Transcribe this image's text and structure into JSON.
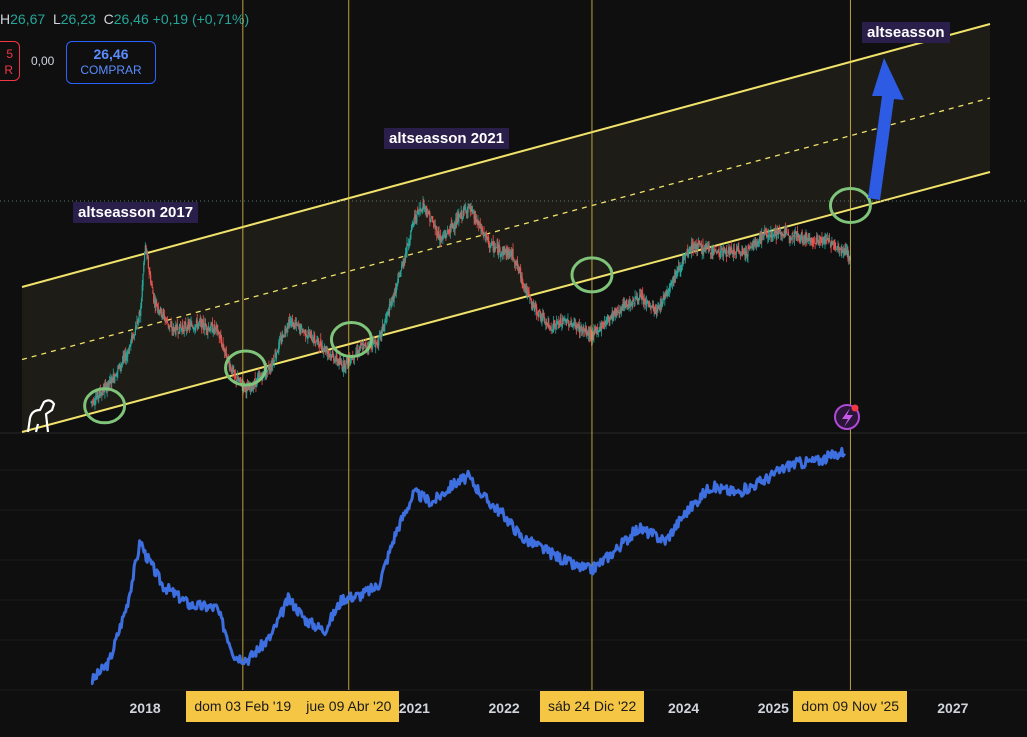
{
  "header": {
    "ohlc": {
      "h_key": "H",
      "h_val": "26,67",
      "l_key": "L",
      "l_val": "26,23",
      "c_key": "C",
      "c_val": "26,46",
      "change": "+0,19 (+0,71%)"
    },
    "sell": {
      "price": "5",
      "label": "R"
    },
    "spread": "0,00",
    "buy": {
      "price": "26,46",
      "label": "COMPRAR"
    }
  },
  "annotations": {
    "label_2017": "altseasson 2017",
    "label_2021": "altseasson 2021",
    "label_target": "altseasson"
  },
  "colors": {
    "background": "#0f0f0f",
    "channel_line": "#f0e26a",
    "channel_fill": "#1f1e17",
    "vline": "#e8c64a",
    "circle": "#7fc47a",
    "price_line": "#3d6fe0",
    "candle_up": "#26a69a",
    "candle_down": "#ef5350",
    "arrow": "#2d5be3",
    "date_tag_bg": "#f5c544"
  },
  "icons": [
    "dino-logo-icon",
    "lightning-alert-icon",
    "up-arrow-icon"
  ],
  "chart_data": [
    {
      "type": "line",
      "panel": "upper candlestick panel with rising parallel channel",
      "series": [
        {
          "x": [
            2017.4,
            2017.6,
            2017.8,
            2017.95,
            2018.0,
            2018.1,
            2018.3,
            2018.6,
            2018.8,
            2019.0,
            2019.15,
            2019.4,
            2019.6,
            2019.8,
            2020.0,
            2020.2,
            2020.4,
            2020.6,
            2020.8,
            2021.0,
            2021.1,
            2021.3,
            2021.6,
            2021.85,
            2022.1,
            2022.3,
            2022.5,
            2022.7,
            2022.98,
            2023.2,
            2023.5,
            2023.7,
            2023.9,
            2024.1,
            2024.4,
            2024.7,
            2024.9,
            2025.2,
            2025.4,
            2025.6,
            2025.8,
            2025.86
          ],
          "y": [
            1.0,
            1.6,
            2.6,
            4.0,
            6.2,
            4.4,
            3.4,
            3.6,
            3.4,
            1.8,
            1.4,
            2.2,
            3.7,
            3.3,
            2.8,
            2.2,
            2.8,
            3.0,
            4.8,
            7.1,
            7.6,
            6.4,
            7.5,
            6.2,
            5.9,
            4.3,
            3.5,
            3.7,
            3.2,
            3.9,
            4.5,
            4.0,
            5.2,
            6.2,
            6.0,
            6.0,
            6.6,
            6.6,
            6.4,
            6.4,
            6.0,
            5.8
          ]
        }
      ]
    },
    {
      "type": "line",
      "panel": "lower comparison line panel",
      "series": [
        {
          "x": [
            2017.4,
            2017.6,
            2017.8,
            2017.95,
            2018.0,
            2018.2,
            2018.5,
            2018.8,
            2019.0,
            2019.15,
            2019.4,
            2019.6,
            2019.8,
            2020.0,
            2020.2,
            2020.4,
            2020.6,
            2020.8,
            2021.0,
            2021.2,
            2021.45,
            2021.6,
            2021.8,
            2022.0,
            2022.2,
            2022.4,
            2022.6,
            2022.8,
            2022.98,
            2023.2,
            2023.5,
            2023.8,
            2024.0,
            2024.3,
            2024.6,
            2024.9,
            2025.2,
            2025.5,
            2025.8
          ],
          "y": [
            0.2,
            0.8,
            2.6,
            4.6,
            4.2,
            3.2,
            2.6,
            2.5,
            1.0,
            0.9,
            1.6,
            2.8,
            2.1,
            1.8,
            2.8,
            2.9,
            3.2,
            4.9,
            6.1,
            5.8,
            6.4,
            6.6,
            5.9,
            5.4,
            4.7,
            4.4,
            4.1,
            3.8,
            3.7,
            4.2,
            5.0,
            4.6,
            5.4,
            6.3,
            6.1,
            6.5,
            7.0,
            7.1,
            7.4
          ]
        }
      ]
    },
    {
      "type": "line",
      "panel": "x axis",
      "x_tick_labels": [
        "2018",
        "2021",
        "2022",
        "2024",
        "2025",
        "2027"
      ],
      "x_tick_values": [
        2018,
        2021,
        2022,
        2024,
        2025,
        2027
      ],
      "vertical_markers": [
        {
          "label": "dom 03 Feb '19",
          "x": 2019.09
        },
        {
          "label": "jue 09 Abr '20",
          "x": 2020.27
        },
        {
          "label": "sáb 24 Dic '22",
          "x": 2022.98
        },
        {
          "label": "dom 09 Nov '25",
          "x": 2025.86
        }
      ]
    }
  ]
}
